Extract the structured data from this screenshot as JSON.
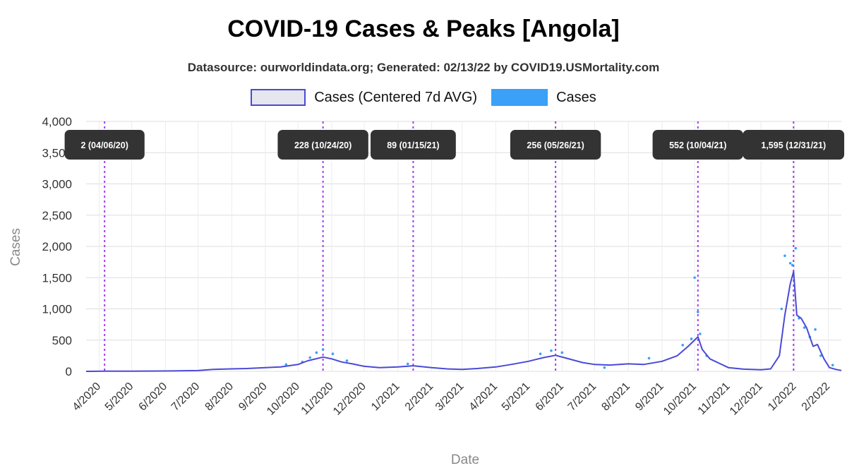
{
  "chart_data": {
    "type": "line",
    "title": "COVID-19 Cases & Peaks [Angola]",
    "subtitle": "Datasource: ourworldindata.org; Generated: 02/13/22 by COVID19.USMortality.com",
    "xlabel": "Date",
    "ylabel": "Cases",
    "ylim": [
      0,
      4000
    ],
    "y_ticks": [
      0,
      500,
      1000,
      1500,
      2000,
      2500,
      3000,
      3500,
      4000
    ],
    "y_tick_labels": [
      "0",
      "500",
      "1,000",
      "1,500",
      "2,000",
      "2,500",
      "3,000",
      "3,500",
      "4,000"
    ],
    "x_range": [
      "2020-03-20",
      "2022-02-13"
    ],
    "x_ticks": [
      "2020-04-01",
      "2020-05-01",
      "2020-06-01",
      "2020-07-01",
      "2020-08-01",
      "2020-09-01",
      "2020-10-01",
      "2020-11-01",
      "2020-12-01",
      "2021-01-01",
      "2021-02-01",
      "2021-03-01",
      "2021-04-01",
      "2021-05-01",
      "2021-06-01",
      "2021-07-01",
      "2021-08-01",
      "2021-09-01",
      "2021-10-01",
      "2021-11-01",
      "2021-12-01",
      "2022-01-01",
      "2022-02-01"
    ],
    "x_tick_labels": [
      "4/2020",
      "5/2020",
      "6/2020",
      "7/2020",
      "8/2020",
      "9/2020",
      "10/2020",
      "11/2020",
      "12/2020",
      "1/2021",
      "2/2021",
      "3/2021",
      "4/2021",
      "5/2021",
      "6/2021",
      "7/2021",
      "8/2021",
      "9/2021",
      "10/2021",
      "11/2021",
      "12/2021",
      "1/2022",
      "2/2022"
    ],
    "grid": true,
    "legend_position": "top",
    "series": [
      {
        "name": "Cases (Centered 7d AVG)",
        "style": "line",
        "color": "#4a4ad6",
        "points": [
          [
            "2020-03-20",
            0
          ],
          [
            "2020-04-06",
            2
          ],
          [
            "2020-05-01",
            3
          ],
          [
            "2020-06-01",
            6
          ],
          [
            "2020-07-01",
            12
          ],
          [
            "2020-07-15",
            30
          ],
          [
            "2020-08-01",
            40
          ],
          [
            "2020-08-15",
            45
          ],
          [
            "2020-09-01",
            60
          ],
          [
            "2020-09-15",
            70
          ],
          [
            "2020-10-01",
            110
          ],
          [
            "2020-10-10",
            170
          ],
          [
            "2020-10-24",
            228
          ],
          [
            "2020-11-01",
            200
          ],
          [
            "2020-11-10",
            150
          ],
          [
            "2020-11-20",
            120
          ],
          [
            "2020-12-01",
            80
          ],
          [
            "2020-12-15",
            60
          ],
          [
            "2021-01-01",
            70
          ],
          [
            "2021-01-15",
            89
          ],
          [
            "2021-02-01",
            60
          ],
          [
            "2021-02-15",
            40
          ],
          [
            "2021-03-01",
            30
          ],
          [
            "2021-03-15",
            45
          ],
          [
            "2021-04-01",
            70
          ],
          [
            "2021-04-15",
            110
          ],
          [
            "2021-05-01",
            160
          ],
          [
            "2021-05-15",
            220
          ],
          [
            "2021-05-26",
            256
          ],
          [
            "2021-06-05",
            210
          ],
          [
            "2021-06-20",
            140
          ],
          [
            "2021-07-01",
            110
          ],
          [
            "2021-07-15",
            100
          ],
          [
            "2021-08-01",
            120
          ],
          [
            "2021-08-15",
            110
          ],
          [
            "2021-09-01",
            160
          ],
          [
            "2021-09-15",
            250
          ],
          [
            "2021-09-25",
            400
          ],
          [
            "2021-10-04",
            552
          ],
          [
            "2021-10-08",
            350
          ],
          [
            "2021-10-15",
            200
          ],
          [
            "2021-11-01",
            60
          ],
          [
            "2021-11-15",
            35
          ],
          [
            "2021-12-01",
            25
          ],
          [
            "2021-12-10",
            40
          ],
          [
            "2021-12-18",
            250
          ],
          [
            "2021-12-23",
            900
          ],
          [
            "2021-12-28",
            1400
          ],
          [
            "2021-12-31",
            1595
          ],
          [
            "2022-01-03",
            900
          ],
          [
            "2022-01-07",
            850
          ],
          [
            "2022-01-12",
            700
          ],
          [
            "2022-01-18",
            400
          ],
          [
            "2022-01-22",
            430
          ],
          [
            "2022-01-28",
            200
          ],
          [
            "2022-02-02",
            60
          ],
          [
            "2022-02-08",
            30
          ],
          [
            "2022-02-13",
            15
          ]
        ]
      },
      {
        "name": "Cases",
        "style": "scatter",
        "color": "#3aa0f8",
        "points": [
          [
            "2020-09-20",
            110
          ],
          [
            "2020-10-05",
            150
          ],
          [
            "2020-10-12",
            220
          ],
          [
            "2020-10-18",
            300
          ],
          [
            "2020-10-24",
            350
          ],
          [
            "2020-11-02",
            280
          ],
          [
            "2020-11-15",
            170
          ],
          [
            "2021-01-10",
            120
          ],
          [
            "2021-05-12",
            280
          ],
          [
            "2021-05-22",
            330
          ],
          [
            "2021-06-01",
            300
          ],
          [
            "2021-07-10",
            60
          ],
          [
            "2021-08-20",
            210
          ],
          [
            "2021-09-20",
            420
          ],
          [
            "2021-09-28",
            520
          ],
          [
            "2021-10-01",
            1500
          ],
          [
            "2021-10-04",
            950
          ],
          [
            "2021-10-06",
            600
          ],
          [
            "2021-10-12",
            250
          ],
          [
            "2021-12-20",
            1000
          ],
          [
            "2021-12-23",
            1850
          ],
          [
            "2021-12-28",
            1730
          ],
          [
            "2021-12-30",
            1700
          ],
          [
            "2022-01-02",
            1970
          ],
          [
            "2022-01-05",
            850
          ],
          [
            "2022-01-10",
            700
          ],
          [
            "2022-01-15",
            550
          ],
          [
            "2022-01-20",
            670
          ],
          [
            "2022-01-25",
            250
          ],
          [
            "2022-02-05",
            100
          ]
        ]
      }
    ],
    "peaks": [
      {
        "date": "2020-04-06",
        "label": "2 (04/06/20)"
      },
      {
        "date": "2020-10-24",
        "label": "228 (10/24/20)"
      },
      {
        "date": "2021-01-15",
        "label": "89 (01/15/21)"
      },
      {
        "date": "2021-05-26",
        "label": "256 (05/26/21)"
      },
      {
        "date": "2021-10-04",
        "label": "552 (10/04/21)"
      },
      {
        "date": "2021-12-31",
        "label": "1,595 (12/31/21)"
      }
    ]
  }
}
